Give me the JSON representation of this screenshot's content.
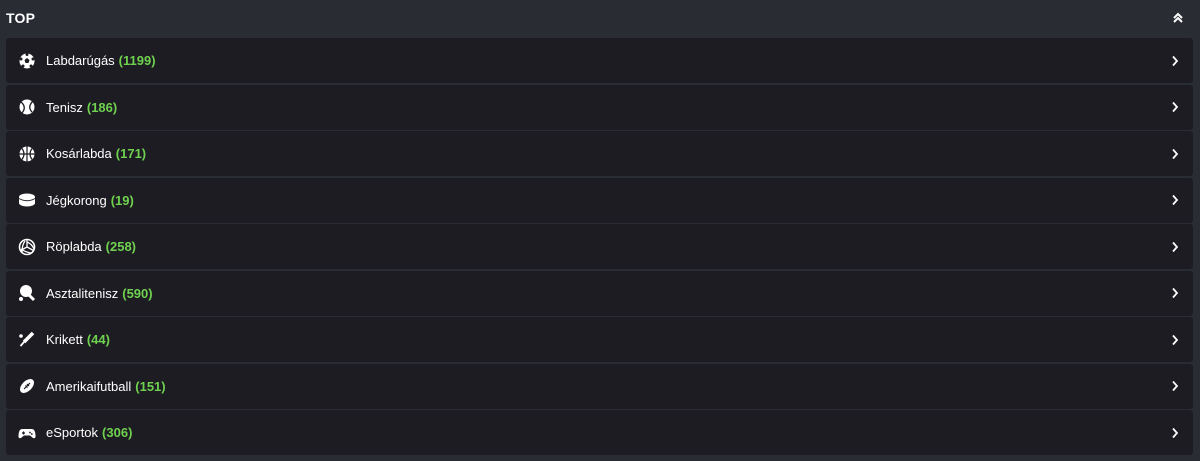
{
  "header": {
    "title": "TOP",
    "collapse_icon": "double-chevron-up-icon"
  },
  "colors": {
    "background": "#2a2c34",
    "row": "#1c1c22",
    "count": "#6fd14f"
  },
  "sports": [
    {
      "label": "Labdarúgás",
      "count": "(1199)",
      "icon": "soccer-ball-icon"
    },
    {
      "label": "Tenisz",
      "count": "(186)",
      "icon": "tennis-ball-icon"
    },
    {
      "label": "Kosárlabda",
      "count": "(171)",
      "icon": "basketball-icon"
    },
    {
      "label": "Jégkorong",
      "count": "(19)",
      "icon": "hockey-puck-icon"
    },
    {
      "label": "Röplabda",
      "count": "(258)",
      "icon": "volleyball-icon"
    },
    {
      "label": "Asztalitenisz",
      "count": "(590)",
      "icon": "table-tennis-icon"
    },
    {
      "label": "Krikett",
      "count": "(44)",
      "icon": "cricket-bat-icon"
    },
    {
      "label": "Amerikaifutball",
      "count": "(151)",
      "icon": "american-football-icon"
    },
    {
      "label": "eSportok",
      "count": "(306)",
      "icon": "gamepad-icon"
    }
  ]
}
